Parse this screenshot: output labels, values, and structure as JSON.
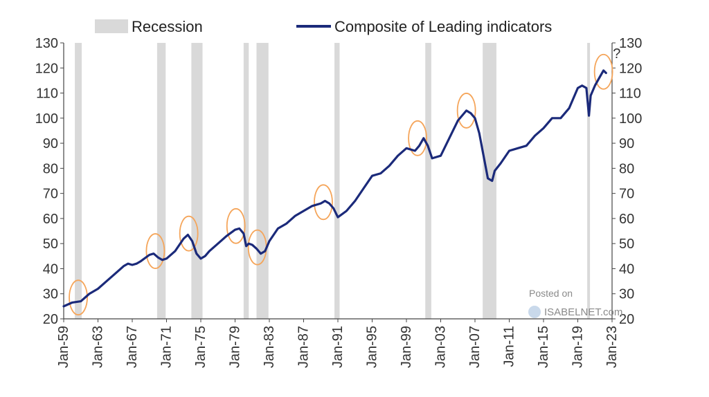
{
  "chart_data": {
    "type": "line",
    "title": "",
    "xlabel": "",
    "ylabel": "",
    "ylim": [
      20,
      130
    ],
    "yticks": [
      20,
      30,
      40,
      50,
      60,
      70,
      80,
      90,
      100,
      110,
      120,
      130
    ],
    "xlim": [
      1959.0,
      2023.0
    ],
    "xtick_labels": [
      "Jan-59",
      "Jan-63",
      "Jan-67",
      "Jan-71",
      "Jan-75",
      "Jan-79",
      "Jan-83",
      "Jan-87",
      "Jan-91",
      "Jan-95",
      "Jan-99",
      "Jan-03",
      "Jan-07",
      "Jan-11",
      "Jan-15",
      "Jan-19",
      "Jan-23"
    ],
    "dual_y_axis": true,
    "grid": false,
    "legend_position": "top",
    "colors": {
      "line": "#1b2a7a",
      "recession": "#d9d9d9",
      "circle": "#f5a55a"
    },
    "recession_label": "Recession",
    "recessions": [
      [
        1960.3,
        1961.1
      ],
      [
        1969.9,
        1970.9
      ],
      [
        1973.9,
        1975.2
      ],
      [
        1980.0,
        1980.6
      ],
      [
        1981.5,
        1982.9
      ],
      [
        1990.6,
        1991.2
      ],
      [
        2001.2,
        2001.9
      ],
      [
        2007.9,
        2009.5
      ],
      [
        2020.1,
        2020.4
      ]
    ],
    "series": [
      {
        "name": "Composite of Leading indicators",
        "x": [
          1959.0,
          1960.0,
          1961.0,
          1962.0,
          1963.0,
          1964.0,
          1965.0,
          1966.0,
          1966.5,
          1967.0,
          1967.5,
          1968.0,
          1969.0,
          1969.5,
          1970.0,
          1970.5,
          1971.0,
          1972.0,
          1973.0,
          1973.5,
          1974.0,
          1974.5,
          1975.0,
          1975.5,
          1976.0,
          1977.0,
          1978.0,
          1979.0,
          1979.5,
          1980.0,
          1980.3,
          1980.6,
          1981.0,
          1981.5,
          1982.0,
          1982.5,
          1983.0,
          1984.0,
          1985.0,
          1986.0,
          1987.0,
          1988.0,
          1989.0,
          1989.5,
          1990.0,
          1990.5,
          1991.0,
          1992.0,
          1993.0,
          1994.0,
          1995.0,
          1996.0,
          1997.0,
          1998.0,
          1999.0,
          2000.0,
          2000.5,
          2001.0,
          2001.5,
          2002.0,
          2003.0,
          2004.0,
          2005.0,
          2006.0,
          2006.5,
          2007.0,
          2007.5,
          2008.0,
          2008.5,
          2009.0,
          2009.3,
          2010.0,
          2011.0,
          2012.0,
          2013.0,
          2014.0,
          2015.0,
          2016.0,
          2017.0,
          2018.0,
          2019.0,
          2019.5,
          2020.0,
          2020.3,
          2020.5,
          2021.0,
          2021.5,
          2022.0,
          2022.3
        ],
        "y": [
          25,
          26.5,
          27,
          30,
          32,
          35,
          38,
          41,
          42,
          41.5,
          42,
          43,
          45.5,
          46,
          44.5,
          43.5,
          44,
          47,
          52,
          53.5,
          51,
          46,
          44,
          45,
          47,
          50,
          53,
          55.5,
          56,
          54,
          49,
          50,
          49.5,
          48,
          46,
          47,
          51,
          56,
          58,
          61,
          63,
          65,
          66,
          67,
          66,
          64,
          60.5,
          63,
          67,
          72,
          77,
          78,
          81,
          85,
          88,
          87,
          89,
          92,
          89,
          84,
          85,
          92,
          99,
          103,
          102,
          100,
          94,
          85,
          76,
          75,
          79,
          82,
          87,
          88,
          89,
          93,
          96,
          100,
          100,
          104,
          112,
          113,
          112,
          101,
          109,
          113,
          116,
          119,
          118
        ]
      }
    ],
    "annotations": [
      {
        "type": "highlight-circle",
        "x": 1960.7,
        "y": 28.5
      },
      {
        "type": "highlight-circle",
        "x": 1969.7,
        "y": 47
      },
      {
        "type": "highlight-circle",
        "x": 1973.6,
        "y": 54
      },
      {
        "type": "highlight-circle",
        "x": 1979.1,
        "y": 57
      },
      {
        "type": "highlight-circle",
        "x": 1981.6,
        "y": 48.5
      },
      {
        "type": "highlight-circle",
        "x": 1989.3,
        "y": 66.5
      },
      {
        "type": "highlight-circle",
        "x": 2000.3,
        "y": 92
      },
      {
        "type": "highlight-circle",
        "x": 2006.0,
        "y": 103
      },
      {
        "type": "highlight-circle",
        "x": 2022.0,
        "y": 118.5
      },
      {
        "type": "text",
        "text": "?",
        "x": 2023.1,
        "y": 124
      }
    ]
  },
  "watermark": {
    "posted_on": "Posted on",
    "site": "ISABELNET.com"
  }
}
